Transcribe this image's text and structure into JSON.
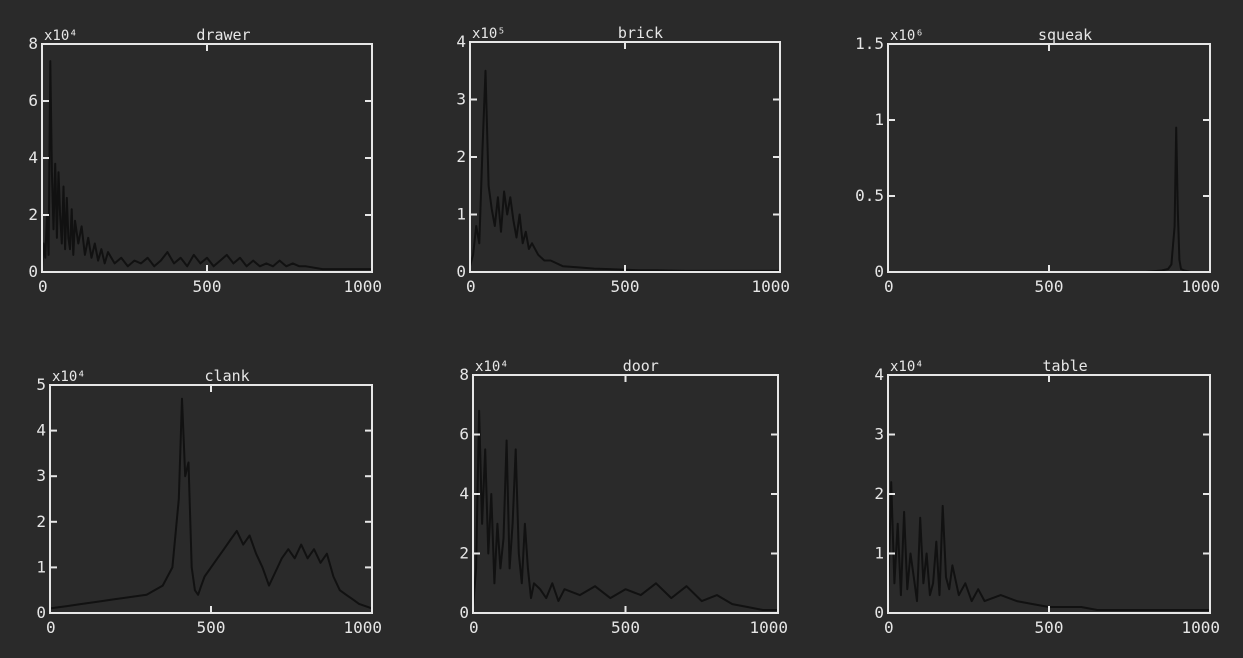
{
  "theme": {
    "background": "#2a2a2a",
    "axes": "#e6e6e6",
    "trace": "#111111"
  },
  "chart_data": [
    {
      "type": "line",
      "title": "drawer",
      "scale_label": "x10⁴",
      "xlim": [
        0,
        1000
      ],
      "ylim": [
        0,
        8
      ],
      "xticks": [
        "0",
        "500",
        "1000"
      ],
      "yticks": [
        "0",
        "2",
        "4",
        "6",
        "8"
      ],
      "series": [
        {
          "x": [
            0,
            5,
            10,
            15,
            20,
            25,
            30,
            35,
            40,
            45,
            50,
            55,
            60,
            65,
            70,
            75,
            80,
            85,
            90,
            95,
            100,
            110,
            120,
            130,
            140,
            150,
            160,
            170,
            180,
            190,
            200,
            220,
            240,
            260,
            280,
            300,
            320,
            340,
            360,
            380,
            400,
            420,
            440,
            460,
            480,
            500,
            520,
            540,
            560,
            580,
            600,
            620,
            640,
            660,
            680,
            700,
            720,
            740,
            760,
            780,
            800,
            850,
            900,
            950,
            1000
          ],
          "y": [
            0.1,
            1.0,
            0.5,
            2.0,
            0.6,
            7.4,
            3.5,
            1.5,
            3.8,
            1.2,
            3.5,
            2.0,
            1.0,
            3.0,
            0.8,
            2.6,
            1.2,
            0.8,
            2.2,
            0.6,
            1.8,
            1.0,
            1.6,
            0.6,
            1.2,
            0.5,
            1.0,
            0.4,
            0.8,
            0.3,
            0.7,
            0.3,
            0.5,
            0.2,
            0.4,
            0.3,
            0.5,
            0.2,
            0.4,
            0.7,
            0.3,
            0.5,
            0.2,
            0.6,
            0.3,
            0.5,
            0.2,
            0.4,
            0.6,
            0.3,
            0.5,
            0.2,
            0.4,
            0.2,
            0.3,
            0.2,
            0.4,
            0.2,
            0.3,
            0.2,
            0.2,
            0.1,
            0.1,
            0.1,
            0.1
          ]
        }
      ]
    },
    {
      "type": "line",
      "title": "brick",
      "scale_label": "x10⁵",
      "xlim": [
        0,
        1000
      ],
      "ylim": [
        0,
        4
      ],
      "xticks": [
        "0",
        "500",
        "1000"
      ],
      "yticks": [
        "0",
        "1",
        "2",
        "3",
        "4"
      ],
      "series": [
        {
          "x": [
            0,
            10,
            20,
            30,
            40,
            50,
            60,
            70,
            80,
            90,
            100,
            110,
            120,
            130,
            140,
            150,
            160,
            170,
            180,
            190,
            200,
            220,
            240,
            260,
            280,
            300,
            350,
            400,
            450,
            500,
            550,
            600,
            700,
            800,
            900,
            1000
          ],
          "y": [
            0.1,
            0.3,
            0.8,
            0.5,
            2.1,
            3.5,
            1.5,
            1.1,
            0.8,
            1.3,
            0.7,
            1.4,
            1.0,
            1.3,
            0.9,
            0.6,
            1.0,
            0.5,
            0.7,
            0.4,
            0.5,
            0.3,
            0.2,
            0.2,
            0.15,
            0.1,
            0.08,
            0.06,
            0.05,
            0.04,
            0.03,
            0.03,
            0.02,
            0.02,
            0.02,
            0.02
          ]
        }
      ]
    },
    {
      "type": "line",
      "title": "squeak",
      "scale_label": "x10⁶",
      "xlim": [
        0,
        1000
      ],
      "ylim": [
        0,
        1.5
      ],
      "xticks": [
        "0",
        "500",
        "1000"
      ],
      "yticks": [
        "0",
        "0.5",
        "1",
        "1.5"
      ],
      "series": [
        {
          "x": [
            0,
            100,
            200,
            300,
            400,
            500,
            600,
            700,
            800,
            850,
            870,
            880,
            890,
            895,
            900,
            905,
            910,
            920,
            940,
            1000
          ],
          "y": [
            0.0,
            0.0,
            0.0,
            0.0,
            0.0,
            0.0,
            0.0,
            0.0,
            0.0,
            0.01,
            0.02,
            0.05,
            0.3,
            0.95,
            0.4,
            0.08,
            0.02,
            0.01,
            0.0,
            0.0
          ]
        }
      ]
    },
    {
      "type": "line",
      "title": "clank",
      "scale_label": "x10⁴",
      "xlim": [
        0,
        1000
      ],
      "ylim": [
        0,
        5
      ],
      "xticks": [
        "0",
        "500",
        "1000"
      ],
      "yticks": [
        "0",
        "1",
        "2",
        "3",
        "4",
        "5"
      ],
      "series": [
        {
          "x": [
            0,
            50,
            100,
            150,
            200,
            250,
            300,
            350,
            380,
            400,
            410,
            420,
            430,
            440,
            450,
            460,
            470,
            480,
            500,
            520,
            540,
            560,
            580,
            600,
            620,
            640,
            660,
            680,
            700,
            720,
            740,
            760,
            780,
            800,
            820,
            840,
            860,
            880,
            900,
            920,
            940,
            960,
            980,
            1000
          ],
          "y": [
            0.1,
            0.15,
            0.2,
            0.25,
            0.3,
            0.35,
            0.4,
            0.6,
            1.0,
            2.5,
            4.7,
            3.0,
            3.3,
            1.0,
            0.5,
            0.4,
            0.6,
            0.8,
            1.0,
            1.2,
            1.4,
            1.6,
            1.8,
            1.5,
            1.7,
            1.3,
            1.0,
            0.6,
            0.9,
            1.2,
            1.4,
            1.2,
            1.5,
            1.2,
            1.4,
            1.1,
            1.3,
            0.8,
            0.5,
            0.4,
            0.3,
            0.2,
            0.15,
            0.1
          ]
        }
      ]
    },
    {
      "type": "line",
      "title": "door",
      "scale_label": "x10⁴",
      "xlim": [
        0,
        1000
      ],
      "ylim": [
        0,
        8
      ],
      "xticks": [
        "0",
        "500",
        "1000"
      ],
      "yticks": [
        "0",
        "2",
        "4",
        "6",
        "8"
      ],
      "series": [
        {
          "x": [
            0,
            10,
            20,
            30,
            40,
            50,
            60,
            70,
            80,
            90,
            100,
            110,
            120,
            130,
            140,
            150,
            160,
            170,
            180,
            190,
            200,
            220,
            240,
            260,
            280,
            300,
            350,
            400,
            450,
            500,
            550,
            600,
            650,
            700,
            750,
            800,
            850,
            900,
            950,
            1000
          ],
          "y": [
            0.2,
            1.5,
            6.8,
            3.0,
            5.5,
            2.0,
            4.0,
            1.0,
            3.0,
            1.5,
            2.5,
            5.8,
            1.5,
            3.0,
            5.5,
            2.0,
            1.0,
            3.0,
            1.5,
            0.5,
            1.0,
            0.8,
            0.5,
            1.0,
            0.4,
            0.8,
            0.6,
            0.9,
            0.5,
            0.8,
            0.6,
            1.0,
            0.5,
            0.9,
            0.4,
            0.6,
            0.3,
            0.2,
            0.1,
            0.1
          ]
        }
      ]
    },
    {
      "type": "line",
      "title": "table",
      "scale_label": "x10⁴",
      "xlim": [
        0,
        1000
      ],
      "ylim": [
        0,
        4
      ],
      "xticks": [
        "0",
        "500",
        "1000"
      ],
      "yticks": [
        "0",
        "1",
        "2",
        "3",
        "4"
      ],
      "series": [
        {
          "x": [
            0,
            10,
            20,
            30,
            40,
            50,
            60,
            70,
            80,
            90,
            100,
            110,
            120,
            130,
            140,
            150,
            160,
            170,
            180,
            190,
            200,
            220,
            240,
            260,
            280,
            300,
            350,
            400,
            450,
            500,
            550,
            600,
            650,
            700,
            750,
            800,
            850,
            900,
            950,
            1000
          ],
          "y": [
            0.2,
            2.2,
            0.5,
            1.5,
            0.3,
            1.7,
            0.4,
            1.0,
            0.6,
            0.2,
            1.6,
            0.5,
            1.0,
            0.3,
            0.5,
            1.2,
            0.3,
            1.8,
            0.6,
            0.4,
            0.8,
            0.3,
            0.5,
            0.2,
            0.4,
            0.2,
            0.3,
            0.2,
            0.15,
            0.1,
            0.1,
            0.1,
            0.05,
            0.05,
            0.05,
            0.05,
            0.05,
            0.05,
            0.05,
            0.05
          ]
        }
      ]
    }
  ]
}
